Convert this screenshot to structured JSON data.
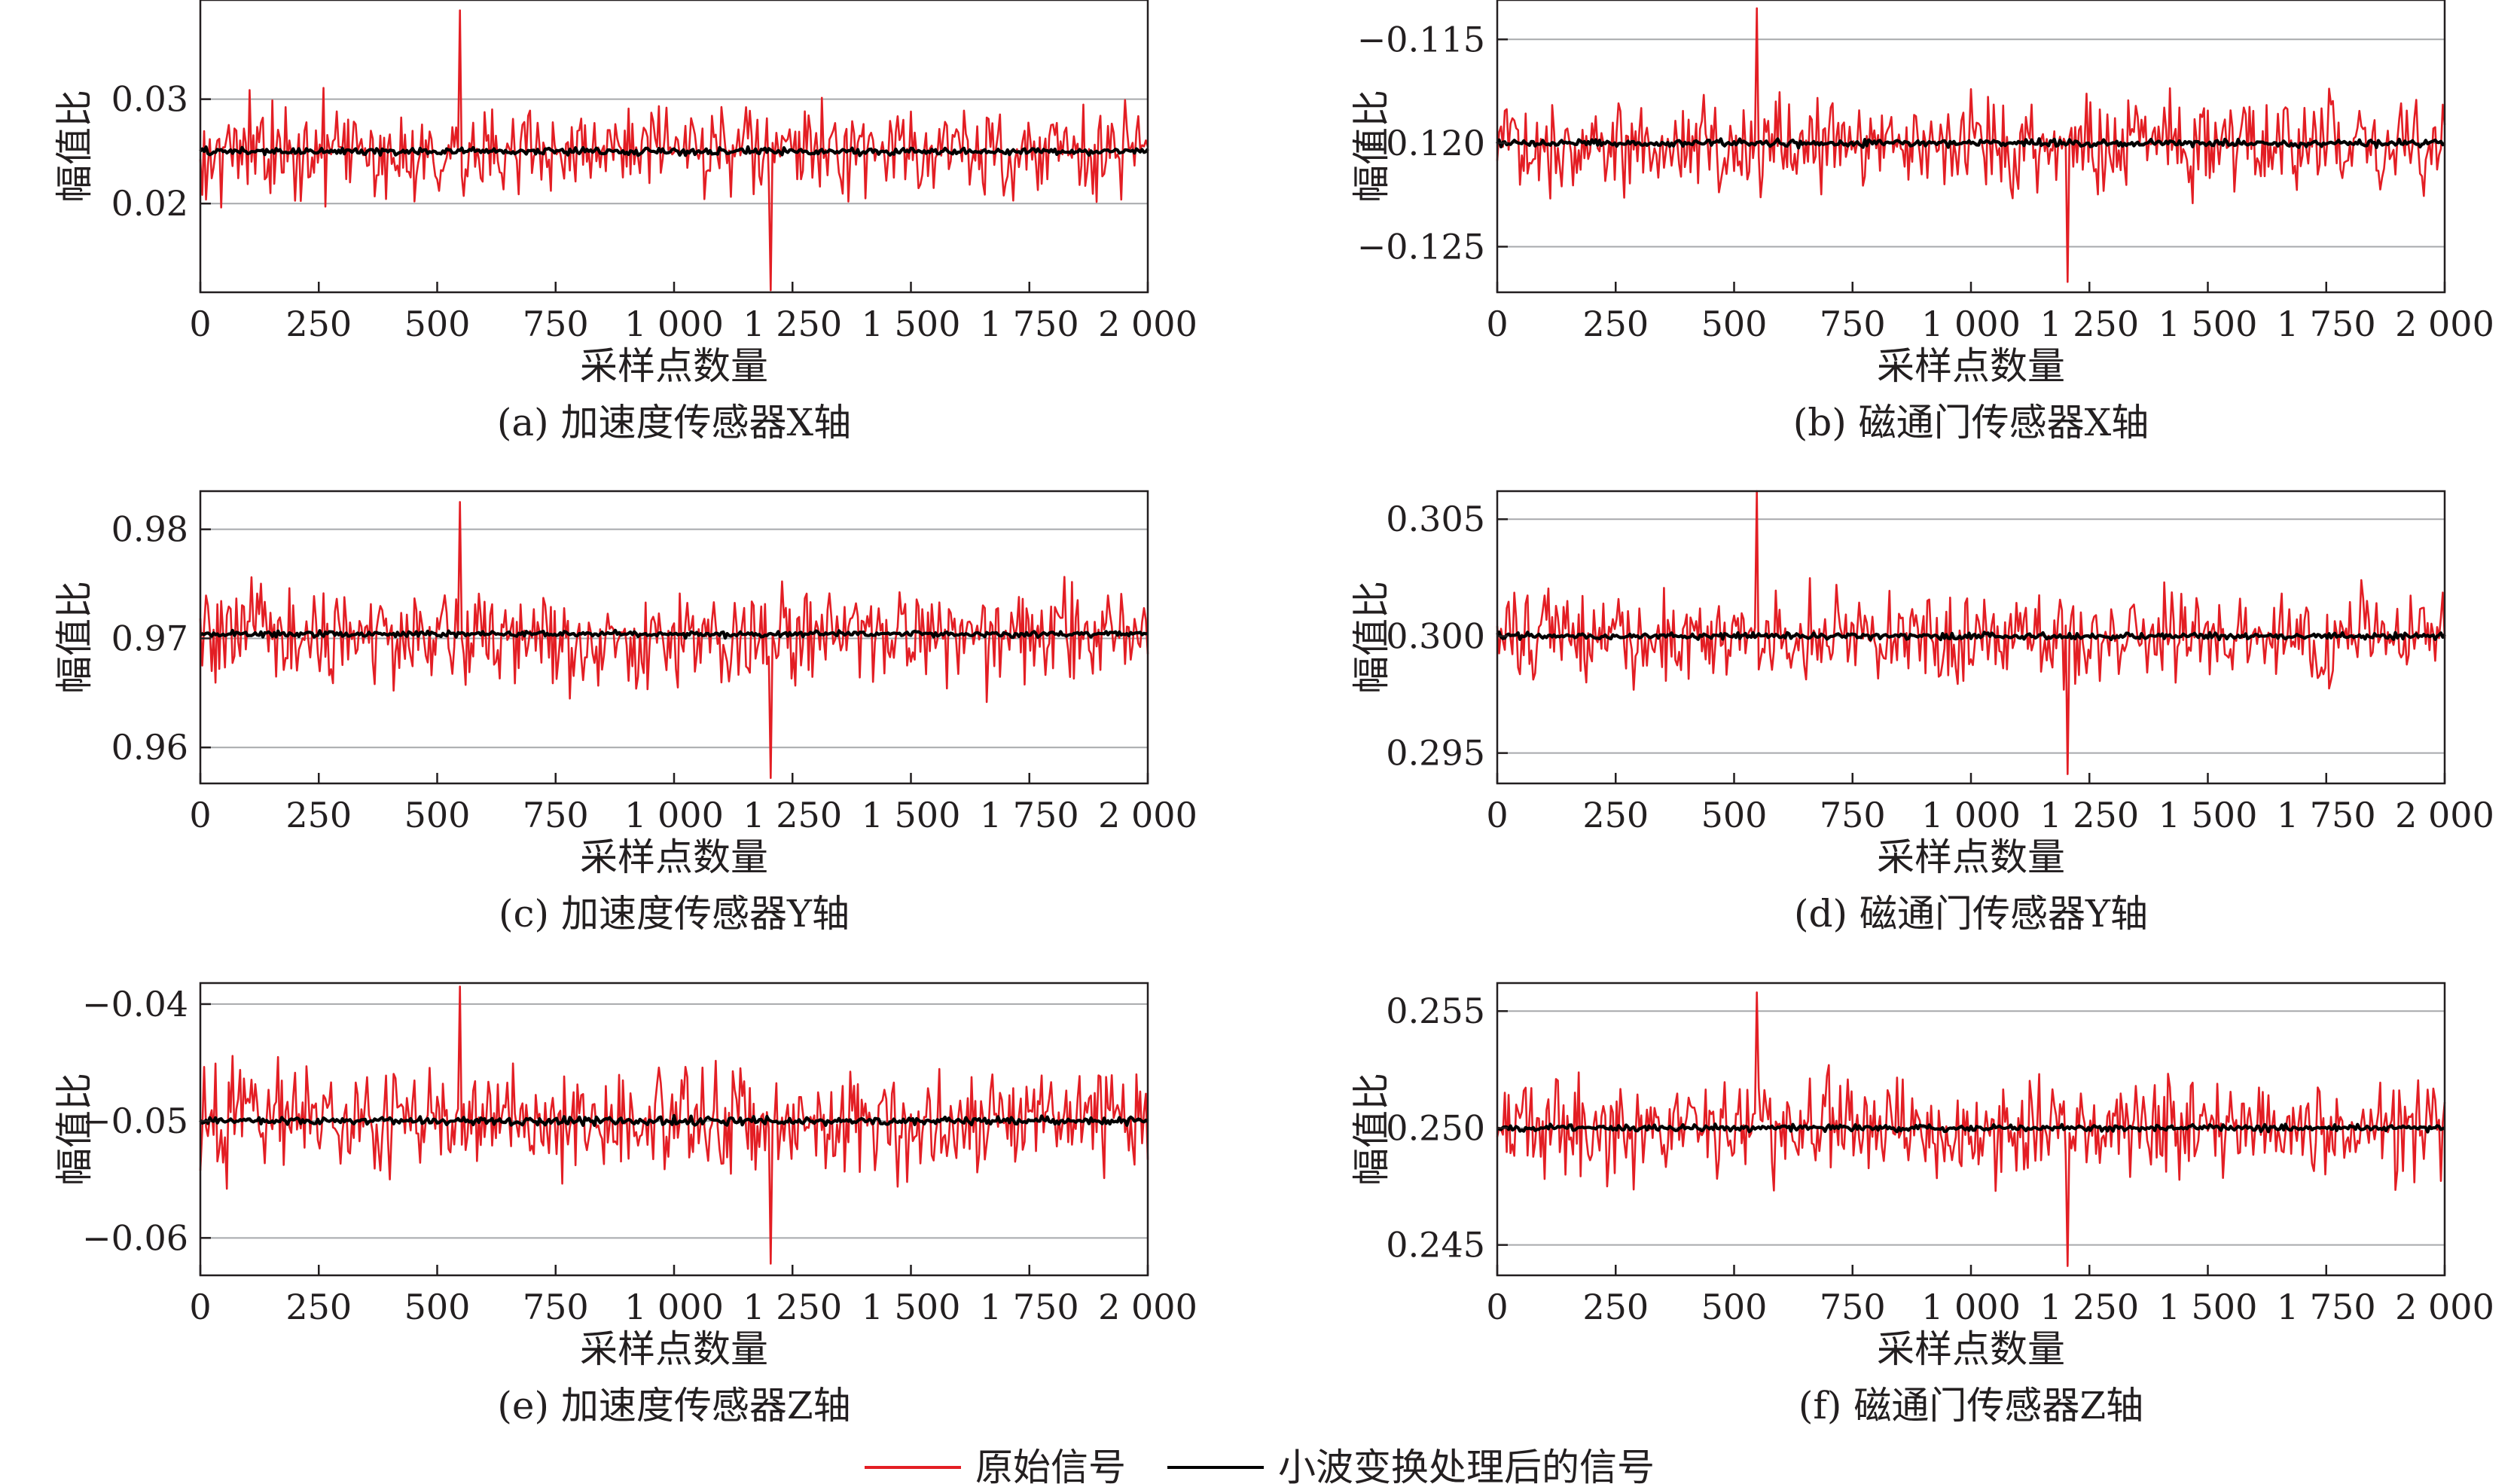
{
  "chart_data": [
    {
      "type": "line",
      "caption": "(a) 加速度传感器X轴",
      "xlabel": "采样点数量",
      "ylabel": "幅值比",
      "xlim": [
        0,
        2000
      ],
      "ylim": [
        0.0115,
        0.0395
      ],
      "xticks": [
        0,
        250,
        500,
        750,
        1000,
        1250,
        1500,
        1750,
        2000
      ],
      "xtick_labels": [
        "0",
        "250",
        "500",
        "750",
        "1 000",
        "1 250",
        "1 500",
        "1 750",
        "2 000"
      ],
      "yticks": [
        0.02,
        0.03
      ],
      "ytick_labels": [
        "0.02",
        "0.03"
      ],
      "grid": true,
      "x_step": 4,
      "series": [
        {
          "name": "原始信号",
          "color": "#e31e24",
          "center": 0.025,
          "amplitude": 0.0065,
          "min": 0.0117,
          "max": 0.0385,
          "sampled": "every 4th sample, 501 points, oscillating between min and max around center"
        },
        {
          "name": "小波变换处理后的信号",
          "color": "#000000",
          "center": 0.025,
          "amplitude": 0.0005
        }
      ]
    },
    {
      "type": "line",
      "caption": "(b) 磁通门传感器X轴",
      "xlabel": "采样点数量",
      "ylabel": "幅值比",
      "xlim": [
        0,
        2000
      ],
      "ylim": [
        -0.1272,
        -0.1131
      ],
      "xticks": [
        0,
        250,
        500,
        750,
        1000,
        1250,
        1500,
        1750,
        2000
      ],
      "xtick_labels": [
        "0",
        "250",
        "500",
        "750",
        "1 000",
        "1 250",
        "1 500",
        "1 750",
        "2 000"
      ],
      "yticks": [
        -0.125,
        -0.12,
        -0.115
      ],
      "ytick_labels": [
        "−0.125",
        "−0.120",
        "−0.115"
      ],
      "grid": true,
      "x_step": 4,
      "series": [
        {
          "name": "原始信号",
          "color": "#e31e24",
          "center": -0.12,
          "amplitude": 0.0034,
          "min": -0.1267,
          "max": -0.1135
        },
        {
          "name": "小波变换处理后的信号",
          "color": "#000000",
          "center": -0.12,
          "amplitude": 0.00025
        }
      ]
    },
    {
      "type": "line",
      "caption": "(c) 加速度传感器Y轴",
      "xlabel": "采样点数量",
      "ylabel": "幅值比",
      "xlim": [
        0,
        2000
      ],
      "ylim": [
        0.9567,
        0.9835
      ],
      "xticks": [
        0,
        250,
        500,
        750,
        1000,
        1250,
        1500,
        1750,
        2000
      ],
      "xtick_labels": [
        "0",
        "250",
        "500",
        "750",
        "1 000",
        "1 250",
        "1 500",
        "1 750",
        "2 000"
      ],
      "yticks": [
        0.96,
        0.97,
        0.98
      ],
      "ytick_labels": [
        "0.96",
        "0.97",
        "0.98"
      ],
      "grid": true,
      "x_step": 4,
      "series": [
        {
          "name": "原始信号",
          "color": "#e31e24",
          "center": 0.97,
          "amplitude": 0.0065,
          "min": 0.9572,
          "max": 0.9825
        },
        {
          "name": "小波变换处理后的信号",
          "color": "#000000",
          "center": 0.9704,
          "amplitude": 0.0004
        }
      ]
    },
    {
      "type": "line",
      "caption": "(d) 磁通门传感器Y轴",
      "xlabel": "采样点数量",
      "ylabel": "幅值比",
      "xlim": [
        0,
        2000
      ],
      "ylim": [
        0.2937,
        0.3062
      ],
      "xticks": [
        0,
        250,
        500,
        750,
        1000,
        1250,
        1500,
        1750,
        2000
      ],
      "xtick_labels": [
        "0",
        "250",
        "500",
        "750",
        "1 000",
        "1 250",
        "1 500",
        "1 750",
        "2 000"
      ],
      "yticks": [
        0.295,
        0.3,
        0.305
      ],
      "ytick_labels": [
        "0.295",
        "0.300",
        "0.305"
      ],
      "grid": true,
      "x_step": 4,
      "series": [
        {
          "name": "原始信号",
          "color": "#e31e24",
          "center": 0.3,
          "amplitude": 0.0029,
          "min": 0.2941,
          "max": 0.3062
        },
        {
          "name": "小波变换处理后的信号",
          "color": "#000000",
          "center": 0.3,
          "amplitude": 0.0002
        }
      ]
    },
    {
      "type": "line",
      "caption": "(e) 加速度传感器Z轴",
      "xlabel": "采样点数量",
      "ylabel": "幅值比",
      "xlim": [
        0,
        2000
      ],
      "ylim": [
        -0.0632,
        -0.0382
      ],
      "xticks": [
        0,
        250,
        500,
        750,
        1000,
        1250,
        1500,
        1750,
        2000
      ],
      "xtick_labels": [
        "0",
        "250",
        "500",
        "750",
        "1 000",
        "1 250",
        "1 500",
        "1 750",
        "2 000"
      ],
      "yticks": [
        -0.06,
        -0.05,
        -0.04
      ],
      "ytick_labels": [
        "−0.06",
        "−0.05",
        "−0.04"
      ],
      "grid": true,
      "x_step": 4,
      "series": [
        {
          "name": "原始信号",
          "color": "#e31e24",
          "center": -0.05,
          "amplitude": 0.0065,
          "min": -0.0622,
          "max": -0.0385
        },
        {
          "name": "小波变换处理后的信号",
          "color": "#000000",
          "center": -0.05,
          "amplitude": 0.0005
        }
      ]
    },
    {
      "type": "line",
      "caption": "(f) 磁通门传感器Z轴",
      "xlabel": "采样点数量",
      "ylabel": "幅值比",
      "xlim": [
        0,
        2000
      ],
      "ylim": [
        0.2437,
        0.2562
      ],
      "xticks": [
        0,
        250,
        500,
        750,
        1000,
        1250,
        1500,
        1750,
        2000
      ],
      "xtick_labels": [
        "0",
        "250",
        "500",
        "750",
        "1 000",
        "1 250",
        "1 500",
        "1 750",
        "2 000"
      ],
      "yticks": [
        0.245,
        0.25,
        0.255
      ],
      "ytick_labels": [
        "0.245",
        "0.250",
        "0.255"
      ],
      "grid": true,
      "x_step": 4,
      "series": [
        {
          "name": "原始信号",
          "color": "#e31e24",
          "center": 0.25,
          "amplitude": 0.0032,
          "min": 0.2441,
          "max": 0.2558
        },
        {
          "name": "小波变换处理后的信号",
          "color": "#000000",
          "center": 0.25,
          "amplitude": 0.0002
        }
      ]
    }
  ],
  "legend": {
    "placement": "bottom-center",
    "items": [
      {
        "label": "原始信号",
        "color": "#e31e24"
      },
      {
        "label": "小波变换处理后的信号",
        "color": "#000000"
      }
    ]
  },
  "colors": {
    "raw_signal": "#e31e24",
    "wavelet_signal": "#000000",
    "grid": "#a7a9ac",
    "axis": "#231f20"
  }
}
